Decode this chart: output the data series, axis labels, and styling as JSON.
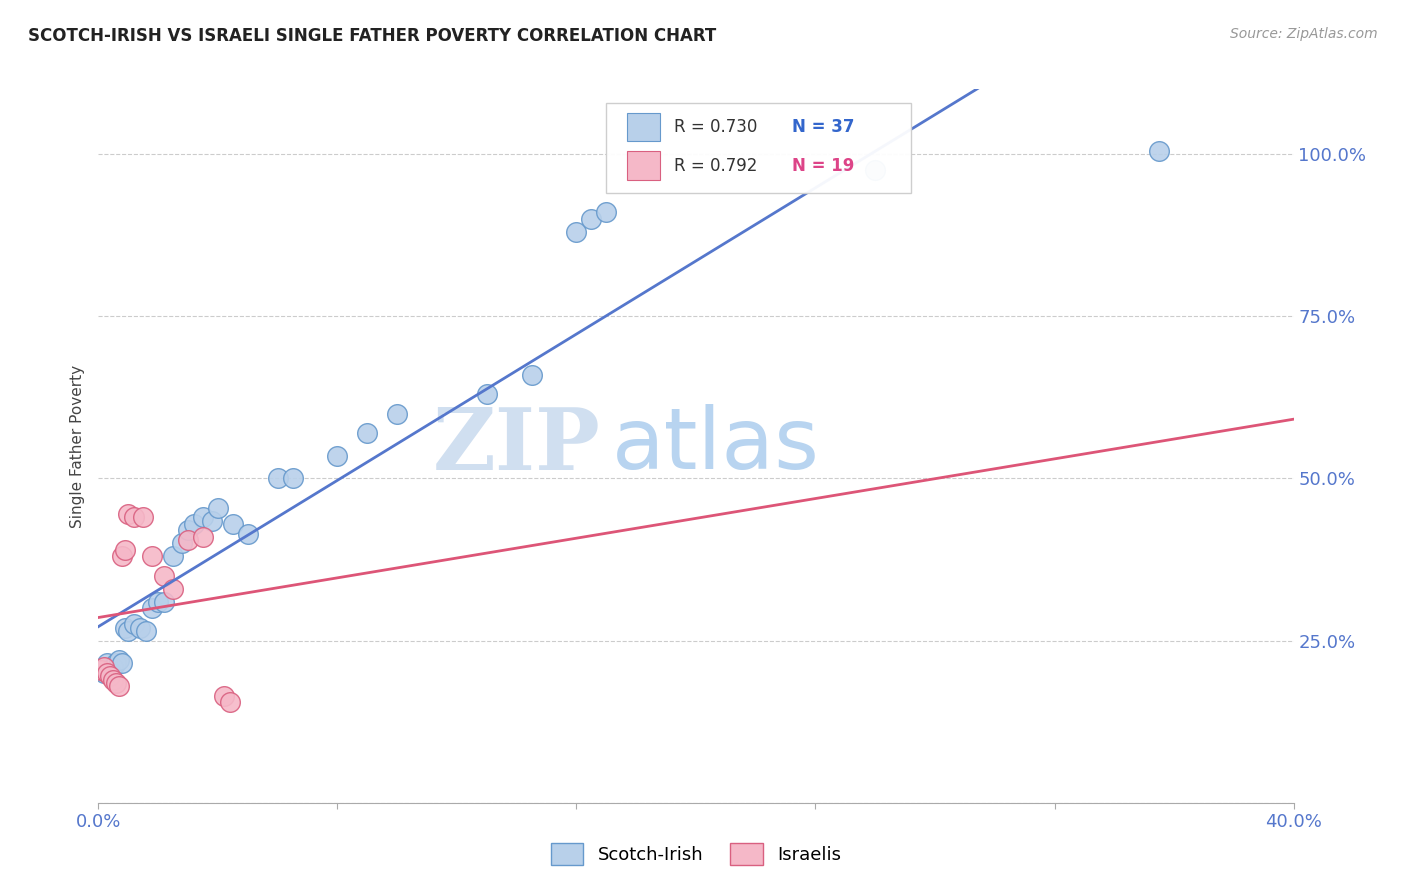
{
  "title": "SCOTCH-IRISH VS ISRAELI SINGLE FATHER POVERTY CORRELATION CHART",
  "source": "Source: ZipAtlas.com",
  "ylabel": "Single Father Poverty",
  "xlim": [
    0.0,
    0.4
  ],
  "ylim": [
    0.0,
    1.1
  ],
  "xtick_positions": [
    0.0,
    0.08,
    0.16,
    0.24,
    0.32,
    0.4
  ],
  "xtick_labels": [
    "0.0%",
    "",
    "",
    "",
    "",
    "40.0%"
  ],
  "ytick_positions": [
    0.0,
    0.25,
    0.5,
    0.75,
    1.0
  ],
  "ytick_labels_right": [
    "",
    "25.0%",
    "50.0%",
    "75.0%",
    "100.0%"
  ],
  "legend_r1": "R = 0.730",
  "legend_n1": "N = 37",
  "legend_r2": "R = 0.792",
  "legend_n2": "N = 19",
  "blue_fill": "#b8d0ea",
  "blue_edge": "#6699cc",
  "pink_fill": "#f5b8c8",
  "pink_edge": "#d96080",
  "line_blue_color": "#5577cc",
  "line_pink_color": "#dd5577",
  "watermark_zip": "ZIP",
  "watermark_atlas": "atlas",
  "scotch_irish_points": [
    [
      0.001,
      0.205
    ],
    [
      0.002,
      0.2
    ],
    [
      0.003,
      0.215
    ],
    [
      0.004,
      0.205
    ],
    [
      0.005,
      0.21
    ],
    [
      0.006,
      0.215
    ],
    [
      0.007,
      0.22
    ],
    [
      0.008,
      0.215
    ],
    [
      0.009,
      0.27
    ],
    [
      0.01,
      0.265
    ],
    [
      0.012,
      0.275
    ],
    [
      0.014,
      0.27
    ],
    [
      0.016,
      0.265
    ],
    [
      0.018,
      0.3
    ],
    [
      0.02,
      0.31
    ],
    [
      0.022,
      0.31
    ],
    [
      0.025,
      0.38
    ],
    [
      0.028,
      0.4
    ],
    [
      0.03,
      0.42
    ],
    [
      0.032,
      0.43
    ],
    [
      0.035,
      0.44
    ],
    [
      0.038,
      0.435
    ],
    [
      0.04,
      0.455
    ],
    [
      0.045,
      0.43
    ],
    [
      0.05,
      0.415
    ],
    [
      0.06,
      0.5
    ],
    [
      0.065,
      0.5
    ],
    [
      0.08,
      0.535
    ],
    [
      0.09,
      0.57
    ],
    [
      0.1,
      0.6
    ],
    [
      0.13,
      0.63
    ],
    [
      0.145,
      0.66
    ],
    [
      0.16,
      0.88
    ],
    [
      0.165,
      0.9
    ],
    [
      0.17,
      0.91
    ],
    [
      0.26,
      0.975
    ],
    [
      0.355,
      1.005
    ]
  ],
  "israeli_points": [
    [
      0.001,
      0.205
    ],
    [
      0.002,
      0.21
    ],
    [
      0.003,
      0.2
    ],
    [
      0.004,
      0.195
    ],
    [
      0.005,
      0.19
    ],
    [
      0.006,
      0.185
    ],
    [
      0.007,
      0.18
    ],
    [
      0.008,
      0.38
    ],
    [
      0.009,
      0.39
    ],
    [
      0.01,
      0.445
    ],
    [
      0.012,
      0.44
    ],
    [
      0.015,
      0.44
    ],
    [
      0.018,
      0.38
    ],
    [
      0.022,
      0.35
    ],
    [
      0.025,
      0.33
    ],
    [
      0.03,
      0.405
    ],
    [
      0.035,
      0.41
    ],
    [
      0.042,
      0.165
    ],
    [
      0.044,
      0.155
    ]
  ]
}
